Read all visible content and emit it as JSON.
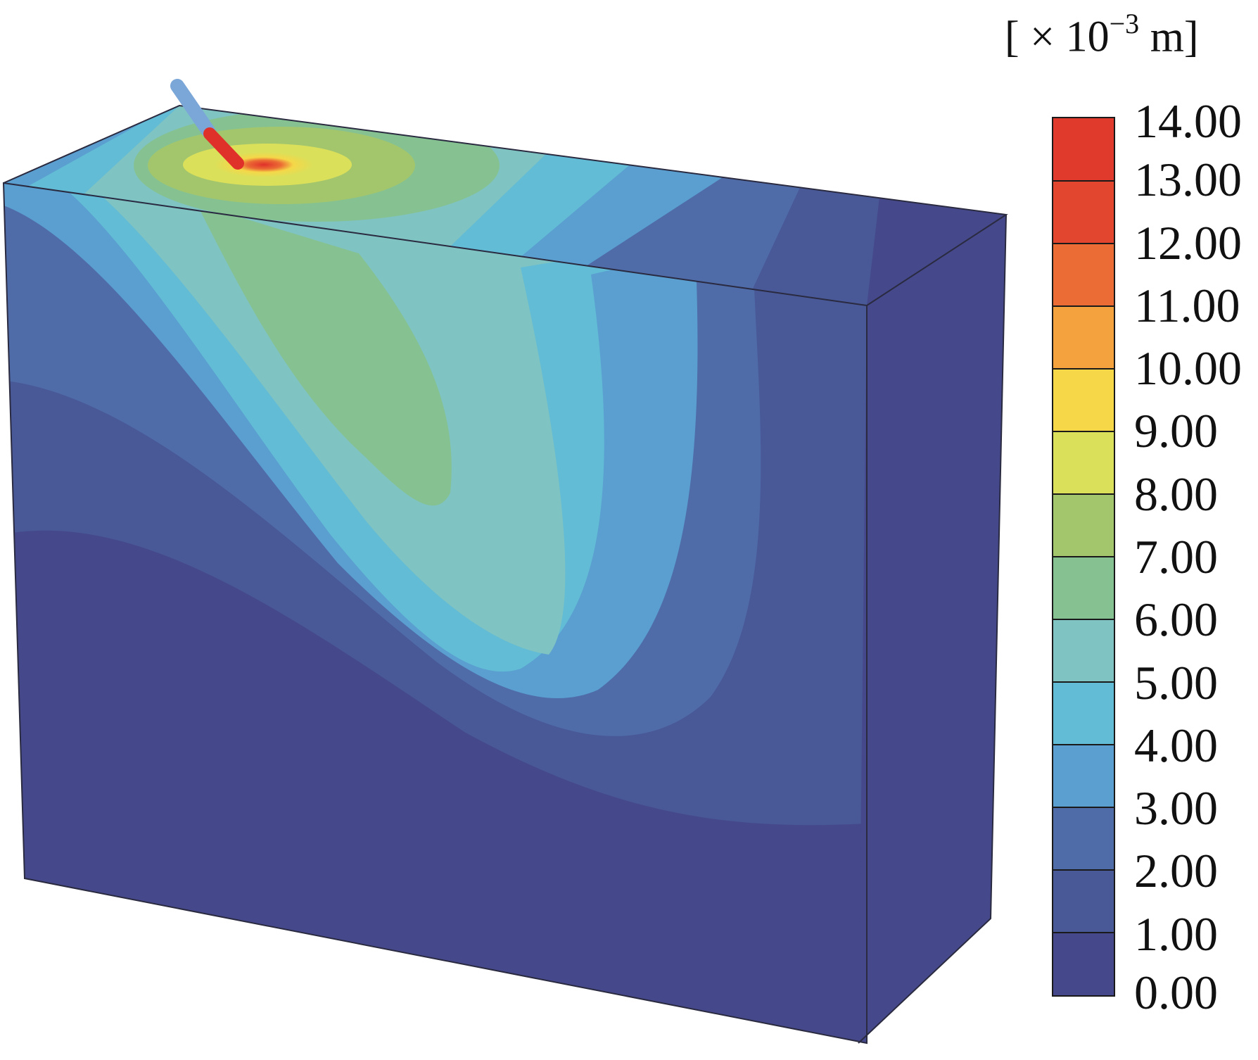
{
  "legend": {
    "unit_prefix": "[ × 10",
    "unit_exponent": "−3",
    "unit_suffix": " m]",
    "labels": [
      "14.00",
      "13.00",
      "12.00",
      "11.00",
      "10.00",
      "9.00",
      "8.00",
      "7.00",
      "6.00",
      "5.00",
      "4.00",
      "3.00",
      "2.00",
      "1.00",
      "0.00"
    ],
    "colors": [
      "#e03a2c",
      "#e2462f",
      "#eb6c34",
      "#f4a23e",
      "#f5d748",
      "#dbe05a",
      "#a3c66c",
      "#86c291",
      "#7fc3c2",
      "#62bcd6",
      "#5a9fd0",
      "#4f6ba8",
      "#495897",
      "#45498b"
    ]
  }
}
